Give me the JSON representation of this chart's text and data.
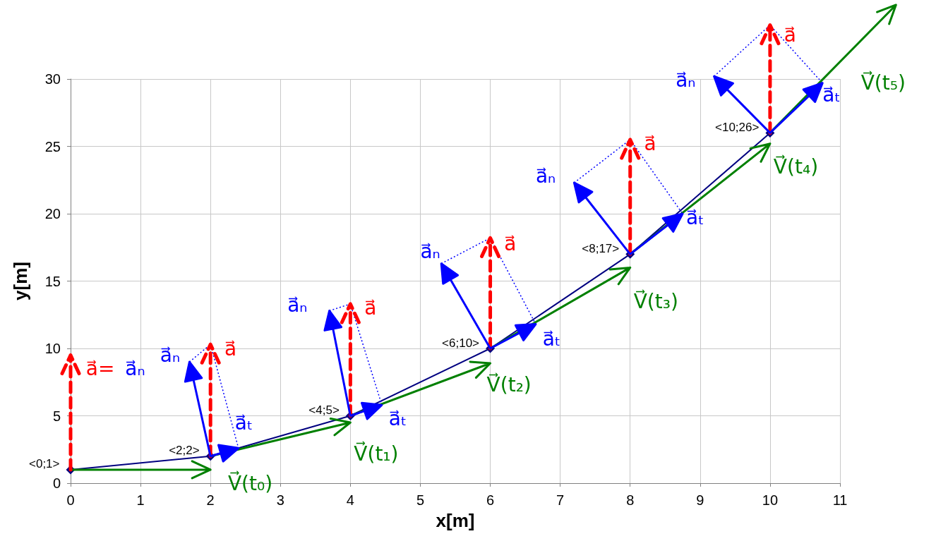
{
  "chart_data": {
    "type": "line",
    "xlabel": "x[m]",
    "ylabel": "y[m]",
    "x": [
      0,
      2,
      4,
      6,
      8,
      10
    ],
    "series": [
      {
        "color": "#000080",
        "values": [
          1,
          2,
          5,
          10,
          17,
          26
        ],
        "value_labels": [
          "<0;1>",
          "<2;2>",
          "<4;5>",
          "<6;10>",
          "<8;17>",
          "<10;26>"
        ]
      }
    ],
    "xlim": [
      0,
      11
    ],
    "xticks": [
      0,
      1,
      2,
      3,
      4,
      5,
      6,
      7,
      8,
      9,
      10,
      11
    ],
    "ylim": [
      0,
      30
    ],
    "yticks": [
      0,
      5,
      10,
      15,
      20,
      25,
      30
    ],
    "grid": true,
    "marker": "diamond",
    "line_style": "solid",
    "annotations": [
      "a⃗=",
      "a⃗ₙ",
      {
        "text": "a⃗ₙ",
        "x": 2,
        "y": 2
      },
      {
        "text": "a⃗",
        "x": 2,
        "y": 2
      },
      "a⃗ₜ",
      {
        "text": "V⃗(t₀)",
        "x": 0,
        "y": 1
      },
      "a⃗ₙ",
      {
        "text": "a⃗",
        "x": 4,
        "y": 5
      },
      "a⃗ₜ",
      {
        "text": "V⃗(t₁)",
        "x": 2,
        "y": 2
      },
      "a⃗ₙ",
      {
        "text": "a⃗",
        "x": 6,
        "y": 10
      },
      "a⃗ₜ",
      {
        "text": "V⃗(t₂)",
        "x": 4,
        "y": 5
      },
      "a⃗ₙ",
      {
        "text": "a⃗",
        "x": 8,
        "y": 17
      },
      "a⃗ₜ",
      {
        "text": "V⃗(t₃)",
        "x": 6,
        "y": 10
      },
      "a⃗ₙ",
      {
        "text": "a⃗",
        "x": 10,
        "y": 26
      },
      "a⃗ₜ",
      {
        "text": "V⃗(t₄)",
        "x": 8,
        "y": 17
      },
      "V⃗(t₅)"
    ]
  }
}
